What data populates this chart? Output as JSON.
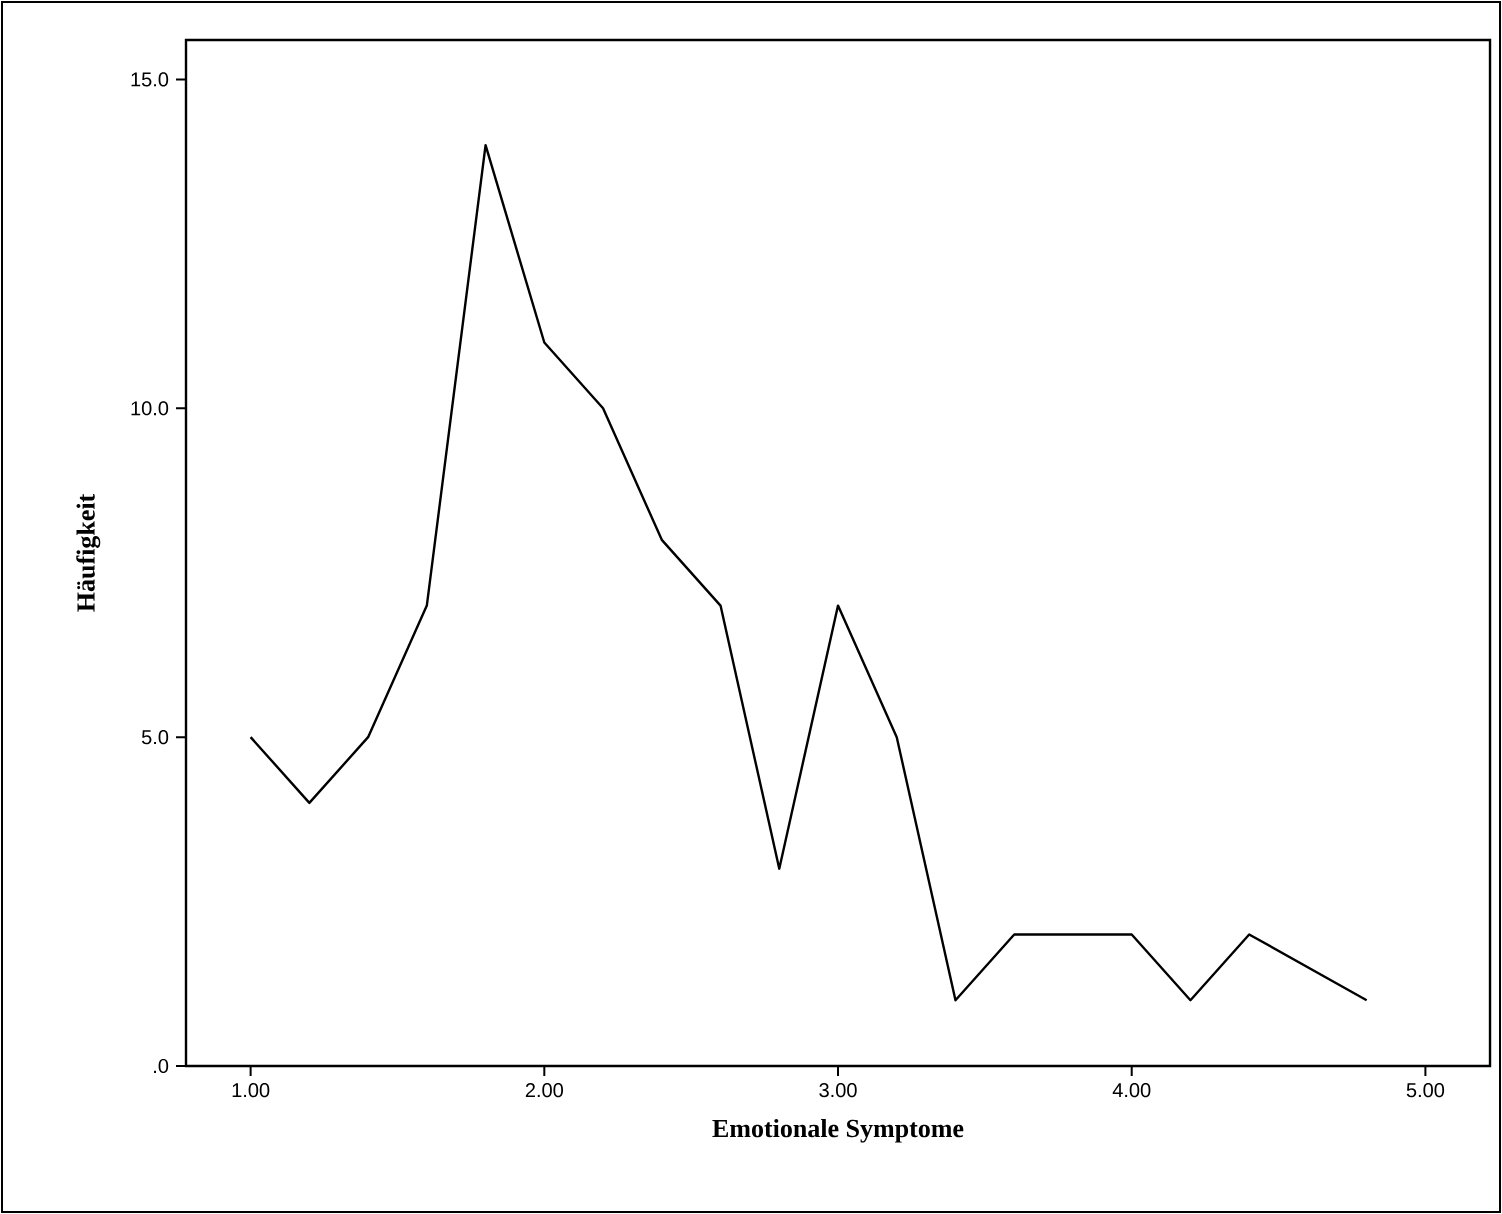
{
  "chart_data": {
    "type": "line",
    "xlabel": "Emotionale Symptome",
    "ylabel": "Häufigkeit",
    "x": [
      1.0,
      1.2,
      1.4,
      1.6,
      1.8,
      2.0,
      2.2,
      2.4,
      2.6,
      2.8,
      3.0,
      3.2,
      3.4,
      3.6,
      3.8,
      4.0,
      4.2,
      4.4,
      4.8
    ],
    "values": [
      5,
      4,
      5,
      7,
      14,
      11,
      10,
      8,
      7,
      3,
      7,
      5,
      1,
      2,
      2,
      2,
      1,
      2,
      1
    ],
    "color": "#000000",
    "line_style": "solid",
    "marker": "none",
    "grid": false,
    "xlim": [
      0.78,
      5.22
    ],
    "ylim": [
      0,
      15.6
    ],
    "xticks": [
      {
        "value": 1,
        "label": "1.00"
      },
      {
        "value": 2,
        "label": "2.00"
      },
      {
        "value": 3,
        "label": "3.00"
      },
      {
        "value": 4,
        "label": "4.00"
      },
      {
        "value": 5,
        "label": "5.00"
      }
    ],
    "yticks": [
      {
        "value": 0,
        "label": ".0"
      },
      {
        "value": 5,
        "label": "5.0"
      },
      {
        "value": 10,
        "label": "10.0"
      },
      {
        "value": 15,
        "label": "15.0"
      }
    ]
  }
}
